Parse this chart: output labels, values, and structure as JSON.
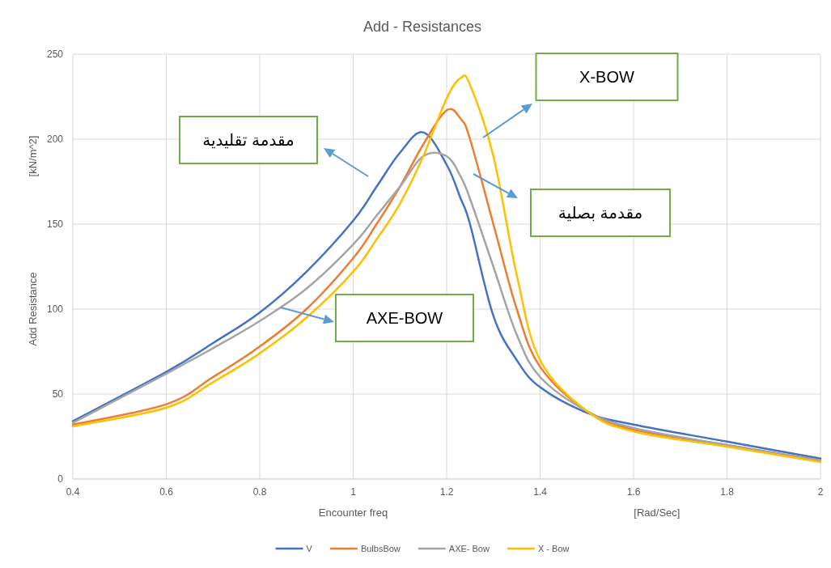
{
  "chart_data": {
    "type": "line",
    "title": "Add  - Resistances",
    "xlabel": "Encounter freq",
    "ylabel": "Add Resistance",
    "annotations": [
      "[kN/m^2]",
      "[Rad/Sec]",
      "مقدمة تقليدية",
      "X-BOW",
      "مقدمة بصلية",
      "AXE-BOW"
    ],
    "xlim": [
      0.4,
      2
    ],
    "ylim": [
      0,
      250
    ],
    "xticks": [
      0.4,
      0.6,
      0.8,
      1,
      1.2,
      1.4,
      1.6,
      1.8,
      2
    ],
    "yticks": [
      0,
      50,
      100,
      150,
      200,
      250
    ],
    "grid": true,
    "legend": "bottom",
    "marker": "none",
    "line_style": "solid",
    "x": [
      0.4,
      0.6,
      0.7,
      0.8,
      0.9,
      1.0,
      1.05,
      1.1,
      1.15,
      1.2,
      1.23,
      1.25,
      1.3,
      1.35,
      1.4,
      1.5,
      1.6,
      1.8,
      2.0
    ],
    "series": [
      {
        "name": "V",
        "color": "#4472c4",
        "values": [
          34,
          63,
          80,
          98,
          122,
          152,
          172,
          192,
          204,
          185,
          165,
          150,
          96,
          70,
          54,
          39,
          32,
          22,
          12
        ]
      },
      {
        "name": "BulbsBow",
        "color": "#ed7d31",
        "values": [
          32,
          44,
          60,
          78,
          100,
          130,
          150,
          172,
          197,
          217,
          212,
          200,
          150,
          100,
          66,
          40,
          29,
          20,
          11
        ]
      },
      {
        "name": "AXE- Bow",
        "color": "#a5a5a5",
        "values": [
          33,
          62,
          77,
          93,
          112,
          138,
          155,
          172,
          190,
          190,
          178,
          165,
          125,
          85,
          60,
          40,
          30,
          20,
          11
        ]
      },
      {
        "name": "X - Bow",
        "color": "#ffc000",
        "values": [
          31,
          42,
          57,
          74,
          95,
          122,
          141,
          162,
          190,
          224,
          236,
          232,
          190,
          120,
          70,
          40,
          28,
          19,
          10
        ]
      }
    ]
  }
}
